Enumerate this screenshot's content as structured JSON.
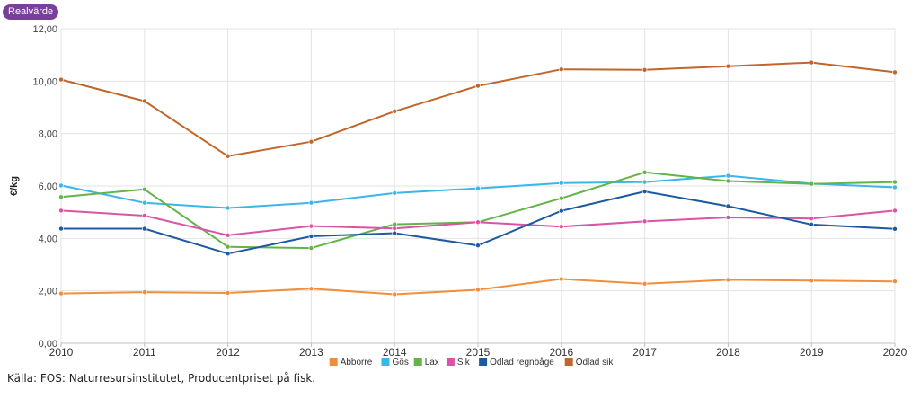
{
  "header": {
    "badge_label": "Realvärde"
  },
  "source_text": "Källa: FOS: Naturresursinstitutet, Producentpriset på fisk.",
  "chart_data": {
    "type": "line",
    "title": "",
    "xlabel": "",
    "ylabel": "€/kg",
    "ylim": [
      0,
      12
    ],
    "yticks": [
      "0,00",
      "2,00",
      "4,00",
      "6,00",
      "8,00",
      "10,00",
      "12,00"
    ],
    "grid": true,
    "legend_position": "bottom",
    "x": [
      "2010",
      "2011",
      "2012",
      "2013",
      "2014",
      "2015",
      "2016",
      "2017",
      "2018",
      "2019",
      "2020"
    ],
    "series": [
      {
        "name": "Abborre",
        "color": "#f28e3a",
        "values": [
          1.9,
          1.95,
          1.92,
          2.08,
          1.87,
          2.04,
          2.45,
          2.27,
          2.42,
          2.39,
          2.36
        ]
      },
      {
        "name": "Gös",
        "color": "#3bb6e8",
        "values": [
          6.02,
          5.36,
          5.16,
          5.36,
          5.73,
          5.91,
          6.11,
          6.15,
          6.39,
          6.09,
          5.95
        ]
      },
      {
        "name": "Lax",
        "color": "#62b448",
        "values": [
          5.58,
          5.87,
          3.68,
          3.63,
          4.54,
          4.62,
          5.53,
          6.52,
          6.19,
          6.08,
          6.15
        ]
      },
      {
        "name": "Sik",
        "color": "#d954a6",
        "values": [
          5.06,
          4.87,
          4.12,
          4.47,
          4.38,
          4.62,
          4.45,
          4.65,
          4.8,
          4.76,
          5.06
        ]
      },
      {
        "name": "Odlad regnbåge",
        "color": "#1d5aa0",
        "values": [
          4.37,
          4.37,
          3.42,
          4.08,
          4.2,
          3.73,
          5.05,
          5.79,
          5.23,
          4.53,
          4.36
        ]
      },
      {
        "name": "Odlad sik",
        "color": "#c0662a",
        "values": [
          10.06,
          9.24,
          7.14,
          7.69,
          8.85,
          9.82,
          10.45,
          10.43,
          10.57,
          10.71,
          10.34
        ]
      }
    ]
  }
}
